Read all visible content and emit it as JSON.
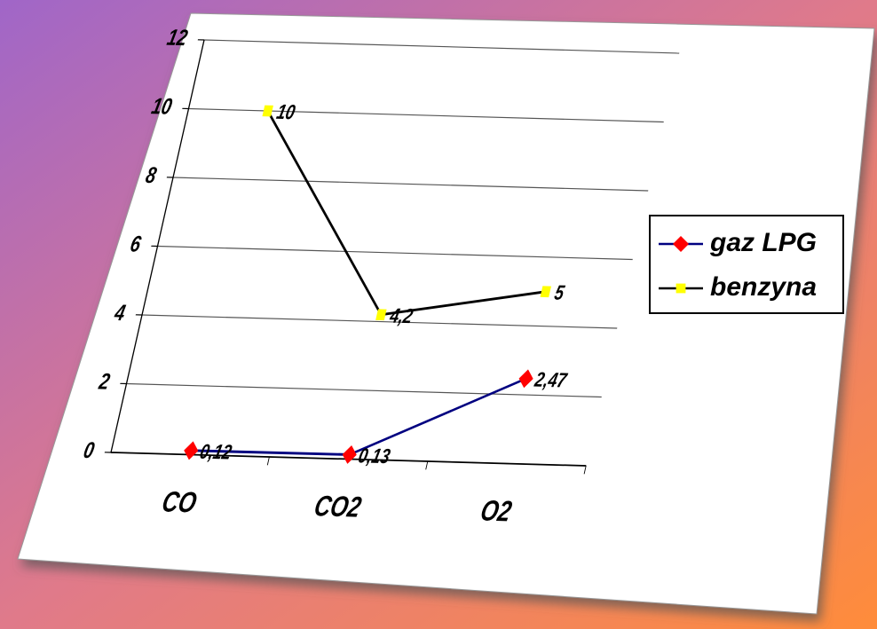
{
  "chart_data": {
    "type": "line",
    "categories": [
      "CO",
      "CO2",
      "O2"
    ],
    "series": [
      {
        "name": "gaz LPG",
        "color": "#000080",
        "marker_color": "#ff0000",
        "marker": "diamond",
        "values": [
          0.12,
          0.13,
          2.47
        ],
        "value_labels": [
          "0,12",
          "0,13",
          "2,47"
        ]
      },
      {
        "name": "benzyna",
        "color": "#000000",
        "marker_color": "#ffff00",
        "marker": "square",
        "values": [
          10,
          4.2,
          5
        ],
        "value_labels": [
          "10",
          "4,2",
          "5"
        ]
      }
    ],
    "ylim": [
      0,
      12
    ],
    "yticks": [
      0,
      2,
      4,
      6,
      8,
      10,
      12
    ],
    "grid": true,
    "legend": "right"
  }
}
